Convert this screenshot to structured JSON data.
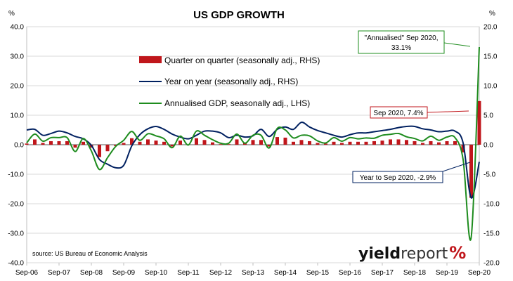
{
  "chart_data": {
    "type": "bar+line",
    "title": "US GDP GROWTH",
    "left_axis": {
      "unit": "%",
      "ylim": [
        -40,
        40
      ],
      "ticks": [
        "40.0",
        "30.0",
        "20.0",
        "10.0",
        "0.0",
        "-10.0",
        "-20.0",
        "-30.0",
        "-40.0"
      ]
    },
    "right_axis": {
      "unit": "%",
      "ylim": [
        -20,
        20
      ],
      "ticks": [
        "20.0",
        "15.0",
        "10.0",
        "5.0",
        "0.0",
        "-5.0",
        "-10.0",
        "-15.0",
        "-20.0"
      ]
    },
    "x_ticks": [
      "Sep-06",
      "Sep-07",
      "Sep-08",
      "Sep-09",
      "Sep-10",
      "Sep-11",
      "Sep-12",
      "Sep-13",
      "Sep-14",
      "Sep-15",
      "Sep-16",
      "Sep-17",
      "Sep-18",
      "Sep-19",
      "Sep-20"
    ],
    "x_range": [
      "2006-09",
      "2020-09"
    ],
    "legend": [
      {
        "label": "Quarter on quarter (seasonally adj., RHS)",
        "color": "#c0161b",
        "kind": "bar"
      },
      {
        "label": "Year on year (seasonally adj., RHS)",
        "color": "#002060",
        "kind": "line"
      },
      {
        "label": "Annualised GDP, seasonally adj., LHS)",
        "color": "#1e8c1e",
        "kind": "line"
      }
    ],
    "x": [
      "2006-09",
      "2006-12",
      "2007-03",
      "2007-06",
      "2007-09",
      "2007-12",
      "2008-03",
      "2008-06",
      "2008-09",
      "2008-12",
      "2009-03",
      "2009-06",
      "2009-09",
      "2009-12",
      "2010-03",
      "2010-06",
      "2010-09",
      "2010-12",
      "2011-03",
      "2011-06",
      "2011-09",
      "2011-12",
      "2012-03",
      "2012-06",
      "2012-09",
      "2012-12",
      "2013-03",
      "2013-06",
      "2013-09",
      "2013-12",
      "2014-03",
      "2014-06",
      "2014-09",
      "2014-12",
      "2015-03",
      "2015-06",
      "2015-09",
      "2015-12",
      "2016-03",
      "2016-06",
      "2016-09",
      "2016-12",
      "2017-03",
      "2017-06",
      "2017-09",
      "2017-12",
      "2018-03",
      "2018-06",
      "2018-09",
      "2018-12",
      "2019-03",
      "2019-06",
      "2019-09",
      "2019-12",
      "2020-03",
      "2020-06",
      "2020-09"
    ],
    "series": [
      {
        "name": "Quarter on quarter (seasonally adj., RHS)",
        "axis": "right",
        "type": "bar",
        "values": [
          0.2,
          0.9,
          0.3,
          0.6,
          0.6,
          0.6,
          -0.5,
          0.5,
          -0.5,
          -2.1,
          -1.1,
          -0.2,
          0.3,
          1.1,
          0.5,
          0.9,
          0.7,
          0.5,
          -0.3,
          0.7,
          0.0,
          1.1,
          0.8,
          0.4,
          0.1,
          0.1,
          0.9,
          0.3,
          0.8,
          0.8,
          -0.3,
          1.3,
          1.2,
          0.5,
          0.8,
          0.6,
          0.3,
          0.2,
          0.5,
          0.3,
          0.5,
          0.5,
          0.5,
          0.6,
          0.7,
          0.9,
          0.9,
          0.8,
          0.6,
          0.3,
          0.6,
          0.4,
          0.6,
          0.6,
          -1.3,
          -9.0,
          7.4
        ]
      },
      {
        "name": "Year on year (seasonally adj., RHS)",
        "axis": "right",
        "type": "line",
        "values": [
          2.5,
          2.6,
          1.6,
          1.9,
          2.3,
          2.0,
          1.4,
          1.0,
          -0.1,
          -2.5,
          -3.3,
          -3.9,
          -3.5,
          -0.2,
          1.7,
          2.7,
          3.1,
          2.6,
          1.8,
          1.3,
          1.0,
          1.6,
          2.3,
          2.3,
          2.0,
          1.2,
          1.6,
          1.3,
          1.5,
          2.6,
          1.4,
          2.6,
          3.0,
          2.6,
          3.8,
          3.0,
          2.4,
          2.0,
          1.6,
          1.3,
          1.7,
          2.0,
          2.0,
          2.2,
          2.4,
          2.6,
          2.9,
          3.1,
          3.1,
          2.7,
          2.5,
          2.2,
          2.3,
          2.3,
          0.3,
          -9.0,
          -2.9
        ]
      },
      {
        "name": "Annualised GDP, seasonally adj., LHS)",
        "axis": "left",
        "type": "line",
        "values": [
          0.6,
          3.6,
          1.2,
          2.4,
          2.4,
          2.4,
          -2.3,
          2.1,
          -2.1,
          -8.4,
          -4.4,
          -0.6,
          1.5,
          4.5,
          1.5,
          3.7,
          3.0,
          2.0,
          -1.0,
          2.9,
          -0.1,
          4.6,
          3.2,
          1.7,
          0.5,
          0.5,
          3.6,
          0.5,
          3.2,
          3.2,
          -1.1,
          5.5,
          5.0,
          2.3,
          3.2,
          3.0,
          1.3,
          0.6,
          2.4,
          1.2,
          2.4,
          2.0,
          2.3,
          2.2,
          3.2,
          3.5,
          3.8,
          2.7,
          2.1,
          1.3,
          2.9,
          1.5,
          2.6,
          2.4,
          -5.0,
          -31.4,
          33.1
        ]
      }
    ],
    "annotations": [
      {
        "text": "\"Annualised\" Sep 2020,",
        "text2": "33.1%",
        "color": "#1e8c1e"
      },
      {
        "text": "Sep 2020, 7.4%",
        "color": "#c0161b"
      },
      {
        "text": "Year to Sep 2020, -2.9%",
        "color": "#002060"
      }
    ],
    "source": "source: US Bureau of Economic Analysis",
    "brand": {
      "part1": "yield",
      "part2": "report",
      "part3": "%"
    }
  }
}
